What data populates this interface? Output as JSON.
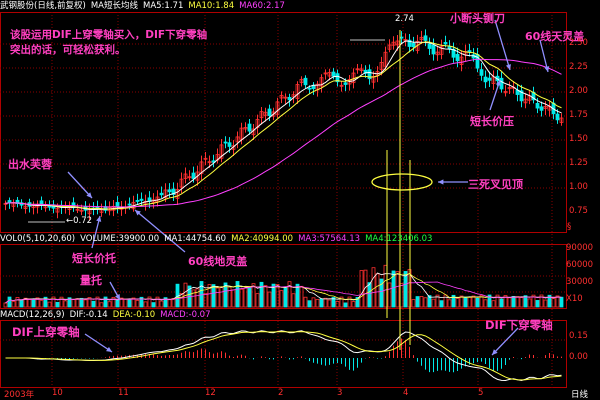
{
  "colors": {
    "red": "#ff3030",
    "cyan": "#00e8e8",
    "white": "#ffffff",
    "yellow": "#ffff40",
    "magenta": "#ff40ff",
    "green": "#20ff40",
    "grid": "#8a0000",
    "annotation": "#ff40c0",
    "blue": "#9090ff"
  },
  "header": {
    "title": "武钢股份(日线,前复权)",
    "ma_label": "MA短长均线",
    "ma5": "MA5:1.71",
    "ma10": "MA10:1.84",
    "ma60": "MA60:2.17"
  },
  "price_axis": {
    "ticks": [
      "2.75",
      "2.50",
      "2.25",
      "2.00",
      "1.75",
      "1.50",
      "1.25",
      "1.00",
      "0.75"
    ],
    "high_mark": "2.74",
    "low_mark": "0.72",
    "unit": "§"
  },
  "volume": {
    "header": "VOL0(5,10,20,60)",
    "volume": "VOLUME:39900.00",
    "ma1": "MA1:44754.60",
    "ma2": "MA2:40994.00",
    "ma3": "MA3:57564.13",
    "ma4": "MA4:123406.03",
    "ticks": [
      "90000",
      "60000",
      "30000",
      "X10"
    ]
  },
  "macd": {
    "header": "MACD(12,26,9)",
    "dif": "DIF:-0.14",
    "dea": "DEA:-0.10",
    "macd": "MACD:-0.07",
    "ticks": [
      "0.15",
      "0.00"
    ]
  },
  "xaxis": {
    "labels": [
      "2003年",
      "10",
      "11",
      "12",
      "2",
      "3",
      "4",
      "5"
    ],
    "period": "日线"
  },
  "annotations": {
    "strategy": "该股运用DIF上穿零轴买入，DIF下穿零轴突出的话，可轻松获利。",
    "a1": "出水芙蓉",
    "a2": "短长价托",
    "a3": "量托",
    "a4": "60线地灵盖",
    "a5": "小断头铡刀",
    "a6": "60线天灵盖",
    "a7": "短长价压",
    "a8": "三死叉见顶",
    "a9": "DIF上穿零轴",
    "a10": "DIF下穿零轴"
  }
}
